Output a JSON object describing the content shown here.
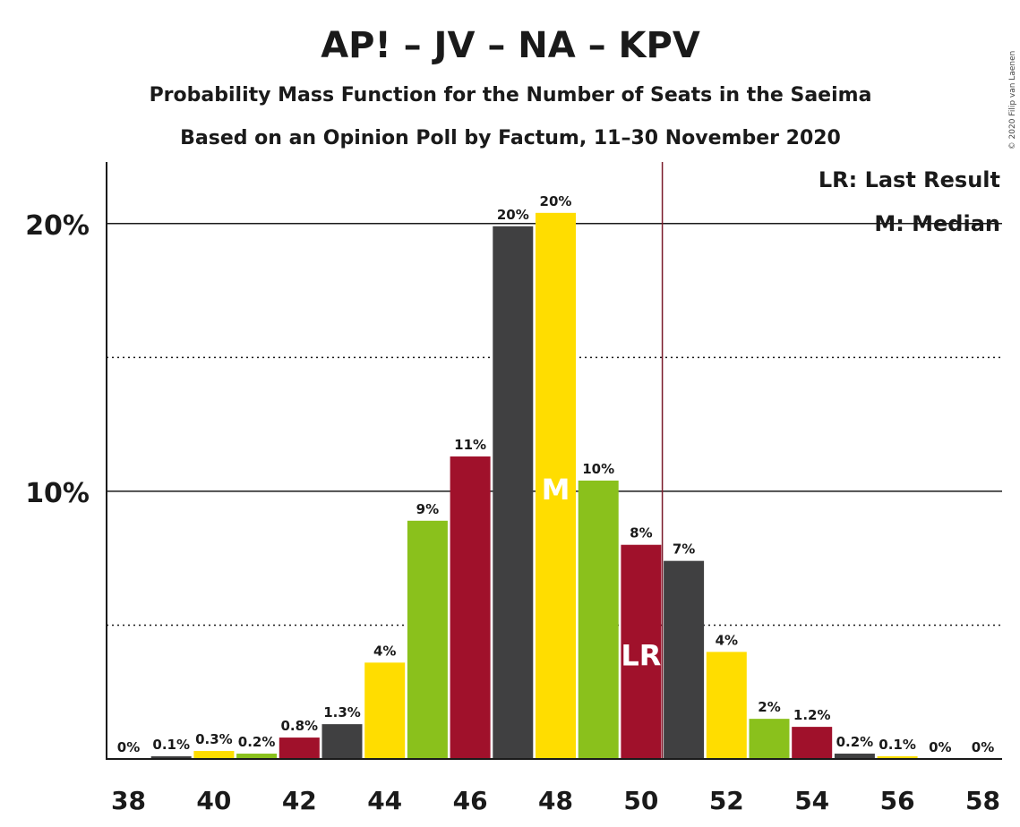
{
  "chart_data": {
    "type": "bar",
    "title": "AP! – JV – NA – KPV",
    "subtitle": "Probability Mass Function for the Number of Seats in the Saeima",
    "subtitle2": "Based on an Opinion Poll by Factum, 11–30 November 2020",
    "copyright": "© 2020 Filip van Laenen",
    "categories": [
      38,
      39,
      40,
      41,
      42,
      43,
      44,
      45,
      46,
      47,
      48,
      49,
      50,
      51,
      52,
      53,
      54,
      55,
      56,
      57,
      58
    ],
    "values": [
      0,
      0.1,
      0.3,
      0.2,
      0.8,
      1.3,
      3.6,
      8.9,
      11.3,
      19.9,
      20.4,
      10.4,
      8.0,
      7.4,
      4.0,
      1.5,
      1.2,
      0.2,
      0.1,
      0,
      0
    ],
    "labels": [
      "0%",
      "0.1%",
      "0.3%",
      "0.2%",
      "0.8%",
      "1.3%",
      "4%",
      "9%",
      "11%",
      "20%",
      "20%",
      "10%",
      "8%",
      "7%",
      "4%",
      "2%",
      "1.2%",
      "0.2%",
      "0.1%",
      "0%",
      "0%"
    ],
    "bar_colors": [
      "#a0112b",
      "#404041",
      "#ffdd00",
      "#8ac11c",
      "#a0112b",
      "#404041",
      "#ffdd00",
      "#8ac11c",
      "#a0112b",
      "#404041",
      "#ffdd00",
      "#8ac11c",
      "#a0112b",
      "#404041",
      "#ffdd00",
      "#8ac11c",
      "#a0112b",
      "#404041",
      "#ffdd00",
      "#8ac11c",
      "#a0112b"
    ],
    "xticks": [
      "38",
      "40",
      "42",
      "44",
      "46",
      "48",
      "50",
      "52",
      "54",
      "56",
      "58"
    ],
    "yticks": [
      {
        "value": 10,
        "label": "10%"
      },
      {
        "value": 20,
        "label": "20%"
      }
    ],
    "ylim": [
      0,
      22.3
    ],
    "minor_gridlines": [
      5,
      15
    ],
    "median_seat": 48,
    "median_marker": "M",
    "last_result_seat": 50,
    "last_result_marker": "LR",
    "last_result_line_color": "#7a1b2a",
    "legend": [
      "LR: Last Result",
      "M: Median"
    ],
    "legend_position": "top-right"
  }
}
